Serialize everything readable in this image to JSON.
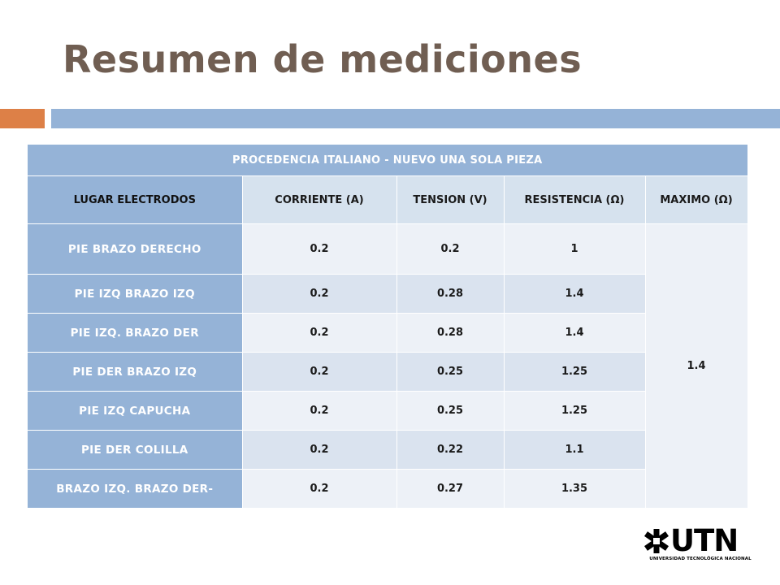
{
  "title": "Resumen de mediciones",
  "table": {
    "caption": "PROCEDENCIA  ITALIANO - NUEVO UNA SOLA PIEZA",
    "headers": [
      "LUGAR  ELECTRODOS",
      "CORRIENTE  (A)",
      "TENSION  (V)",
      "RESISTENCIA  (Ω)",
      "MAXIMO (Ω)"
    ],
    "rows": [
      {
        "location": "PIE BRAZO DERECHO",
        "corriente": "0.2",
        "tension": "0.2",
        "resistencia": "1"
      },
      {
        "location": "PIE IZQ BRAZO IZQ",
        "corriente": "0.2",
        "tension": "0.28",
        "resistencia": "1.4"
      },
      {
        "location": "PIE IZQ. BRAZO DER",
        "corriente": "0.2",
        "tension": "0.28",
        "resistencia": "1.4"
      },
      {
        "location": "PIE DER BRAZO IZQ",
        "corriente": "0.2",
        "tension": "0.25",
        "resistencia": "1.25"
      },
      {
        "location": "PIE IZQ CAPUCHA",
        "corriente": "0.2",
        "tension": "0.25",
        "resistencia": "1.25"
      },
      {
        "location": "PIE DER COLILLA",
        "corriente": "0.2",
        "tension": "0.22",
        "resistencia": "1.1"
      },
      {
        "location": "BRAZO IZQ. BRAZO DER-",
        "corriente": "0.2",
        "tension": "0.27",
        "resistencia": "1.35"
      }
    ],
    "maximo": "1.4"
  },
  "logo": {
    "name": "UTN",
    "subtitle": "UNIVERSIDAD TECNOLÓGICA NACIONAL"
  },
  "colors": {
    "title": "#705e52",
    "accent_orange": "#dd8047",
    "accent_blue": "#95b3d7",
    "row_light": "#edf1f7",
    "row_dark": "#dae3ef"
  }
}
